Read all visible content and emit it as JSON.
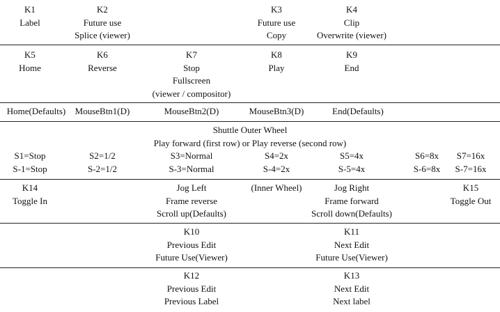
{
  "row1": {
    "k1": [
      "K1",
      "Label"
    ],
    "k2": [
      "K2",
      "Future use",
      "Splice (viewer)"
    ],
    "k3": [
      "K3",
      "Future use",
      "Copy"
    ],
    "k4": [
      "K4",
      "Clip",
      "Overwrite (viewer)"
    ]
  },
  "row2": {
    "k5": [
      "K5",
      "Home"
    ],
    "k6": [
      "K6",
      "Reverse"
    ],
    "k7": [
      "K7",
      "Stop",
      "Fullscreen",
      "(viewer / compositor)"
    ],
    "k8": [
      "K8",
      "Play"
    ],
    "k9": [
      "K9",
      "End"
    ]
  },
  "row3": [
    "Home(Defaults)",
    "MouseBtn1(D)",
    "MouseBtn2(D)",
    "MouseBtn3(D)",
    "End(Defaults)"
  ],
  "row4": {
    "title": "Shuttle Outer Wheel",
    "subtitle": "Play forward (first row) or Play reverse (second row)",
    "forward": [
      "S1=Stop",
      "S2=1/2",
      "S3=Normal",
      "S4=2x",
      "S5=4x",
      "S6=8x",
      "S7=16x"
    ],
    "reverse": [
      "S-1=Stop",
      "S-2=1/2",
      "S-3=Normal",
      "S-4=2x",
      "S-5=4x",
      "S-6=8x",
      "S-7=16x"
    ]
  },
  "row5": {
    "k14": [
      "K14",
      "Toggle In"
    ],
    "jog_left": [
      "Jog Left",
      "Frame reverse",
      "Scroll up(Defaults)"
    ],
    "inner": "(Inner Wheel)",
    "jog_right": [
      "Jog Right",
      "Frame forward",
      "Scroll down(Defaults)"
    ],
    "k15": [
      "K15",
      "Toggle Out"
    ]
  },
  "row6": {
    "k10": [
      "K10",
      "Previous Edit",
      "Future Use(Viewer)"
    ],
    "k11": [
      "K11",
      "Next Edit",
      "Future Use(Viewer)"
    ]
  },
  "row7": {
    "k12": [
      "K12",
      "Previous Edit",
      "Previous Label"
    ],
    "k13": [
      "K13",
      "Next Edit",
      "Next label"
    ]
  }
}
